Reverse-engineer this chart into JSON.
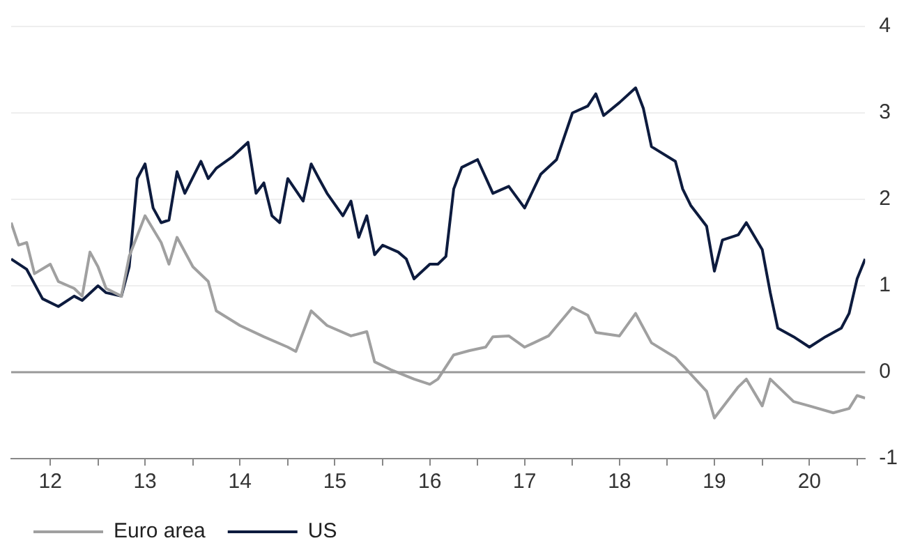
{
  "chart_data": {
    "type": "line",
    "xlim": [
      "2012-02",
      "2021-02"
    ],
    "xticks": [
      {
        "value": "2012-07-01",
        "label": "12"
      },
      {
        "value": "2013",
        "label": null
      },
      {
        "value": "2013-07-01",
        "label": "13"
      },
      {
        "value": "2014",
        "label": null
      },
      {
        "value": "2014-07-01",
        "label": "14"
      },
      {
        "value": "2015",
        "label": null
      },
      {
        "value": "2015-07-01",
        "label": "15"
      },
      {
        "value": "2016",
        "label": null
      },
      {
        "value": "2016-07-01",
        "label": "16"
      },
      {
        "value": "2017",
        "label": null
      },
      {
        "value": "2017-07-01",
        "label": "17"
      },
      {
        "value": "2018",
        "label": null
      },
      {
        "value": "2018-07-01",
        "label": "18"
      },
      {
        "value": "2019",
        "label": null
      },
      {
        "value": "2019-07-01",
        "label": "19"
      },
      {
        "value": "2020",
        "label": null
      },
      {
        "value": "2020-07-01",
        "label": "20"
      },
      {
        "value": "2021",
        "label": null
      }
    ],
    "ylim": [
      -1,
      4
    ],
    "yticks": [
      -1,
      0,
      1,
      2,
      3,
      4
    ],
    "grid": "y",
    "legend": "bottom left",
    "ref_lines": [
      {
        "axis": "y",
        "value": 0,
        "color": "#999999"
      }
    ],
    "series": [
      {
        "name": "Euro area",
        "color": "#a0a0a0",
        "x": [
          "2012-02",
          "2012-03",
          "2012-04",
          "2012-05",
          "2012-07",
          "2012-08",
          "2012-10",
          "2012-11",
          "2012-12",
          "2013-01",
          "2013-02",
          "2013-04",
          "2013-05",
          "2013-07",
          "2013-09",
          "2013-10",
          "2013-11",
          "2014-01",
          "2014-03",
          "2014-04",
          "2014-07",
          "2014-10",
          "2015-01",
          "2015-02",
          "2015-04",
          "2015-06",
          "2015-09",
          "2015-11",
          "2015-12",
          "2016-02",
          "2016-05",
          "2016-07",
          "2016-08",
          "2016-10",
          "2016-12",
          "2017-02",
          "2017-03",
          "2017-05",
          "2017-07",
          "2017-10",
          "2018-01",
          "2018-03",
          "2018-04",
          "2018-07",
          "2018-09",
          "2018-11",
          "2019-02",
          "2019-03",
          "2019-06",
          "2019-07",
          "2019-10",
          "2019-11",
          "2020-01",
          "2020-02",
          "2020-05",
          "2020-07",
          "2020-10",
          "2020-12",
          "2021-01",
          "2021-02"
        ],
        "values": [
          1.73,
          1.47,
          1.5,
          1.14,
          1.25,
          1.05,
          0.97,
          0.88,
          1.39,
          1.22,
          0.97,
          0.88,
          1.34,
          1.81,
          1.5,
          1.25,
          1.56,
          1.22,
          1.05,
          0.71,
          0.54,
          0.41,
          0.29,
          0.24,
          0.71,
          0.54,
          0.42,
          0.47,
          0.12,
          0.03,
          -0.08,
          -0.14,
          -0.08,
          0.2,
          0.25,
          0.29,
          0.41,
          0.42,
          0.29,
          0.42,
          0.75,
          0.66,
          0.46,
          0.42,
          0.68,
          0.34,
          0.17,
          0.08,
          -0.22,
          -0.53,
          -0.17,
          -0.08,
          -0.39,
          -0.08,
          -0.34,
          -0.39,
          -0.47,
          -0.42,
          -0.27,
          -0.3
        ]
      },
      {
        "name": "US",
        "color": "#0d1b3e",
        "x": [
          "2012-02",
          "2012-04",
          "2012-06",
          "2012-08",
          "2012-10",
          "2012-11",
          "2013-01",
          "2013-02",
          "2013-04",
          "2013-05",
          "2013-06",
          "2013-07",
          "2013-08",
          "2013-09",
          "2013-10",
          "2013-11",
          "2013-12",
          "2014-02",
          "2014-03",
          "2014-04",
          "2014-06",
          "2014-08",
          "2014-09",
          "2014-10",
          "2014-11",
          "2014-12",
          "2015-01",
          "2015-03",
          "2015-04",
          "2015-05",
          "2015-06",
          "2015-08",
          "2015-09",
          "2015-10",
          "2015-11",
          "2015-12",
          "2016-01",
          "2016-03",
          "2016-04",
          "2016-05",
          "2016-07",
          "2016-08",
          "2016-09",
          "2016-10",
          "2016-11",
          "2017-01",
          "2017-03",
          "2017-05",
          "2017-07",
          "2017-09",
          "2017-11",
          "2018-01",
          "2018-03",
          "2018-04",
          "2018-05",
          "2018-07",
          "2018-09",
          "2018-10",
          "2018-11",
          "2019-02",
          "2019-03",
          "2019-04",
          "2019-06",
          "2019-07",
          "2019-08",
          "2019-10",
          "2019-11",
          "2020-01",
          "2020-02",
          "2020-03",
          "2020-05",
          "2020-07",
          "2020-09",
          "2020-11",
          "2020-12",
          "2021-01",
          "2021-02"
        ],
        "values": [
          1.31,
          1.19,
          0.85,
          0.76,
          0.88,
          0.83,
          1.0,
          0.92,
          0.88,
          1.22,
          2.24,
          2.41,
          1.9,
          1.73,
          1.76,
          2.32,
          2.07,
          2.44,
          2.24,
          2.36,
          2.49,
          2.66,
          2.07,
          2.19,
          1.81,
          1.73,
          2.24,
          1.98,
          2.41,
          2.24,
          2.07,
          1.81,
          1.98,
          1.56,
          1.81,
          1.36,
          1.47,
          1.39,
          1.31,
          1.08,
          1.25,
          1.25,
          1.34,
          2.12,
          2.37,
          2.46,
          2.07,
          2.15,
          1.9,
          2.29,
          2.46,
          3.0,
          3.08,
          3.22,
          2.97,
          3.12,
          3.29,
          3.05,
          2.61,
          2.44,
          2.12,
          1.93,
          1.69,
          1.17,
          1.53,
          1.59,
          1.73,
          1.42,
          0.92,
          0.51,
          0.41,
          0.29,
          0.41,
          0.51,
          0.68,
          1.08,
          1.31
        ]
      }
    ]
  }
}
